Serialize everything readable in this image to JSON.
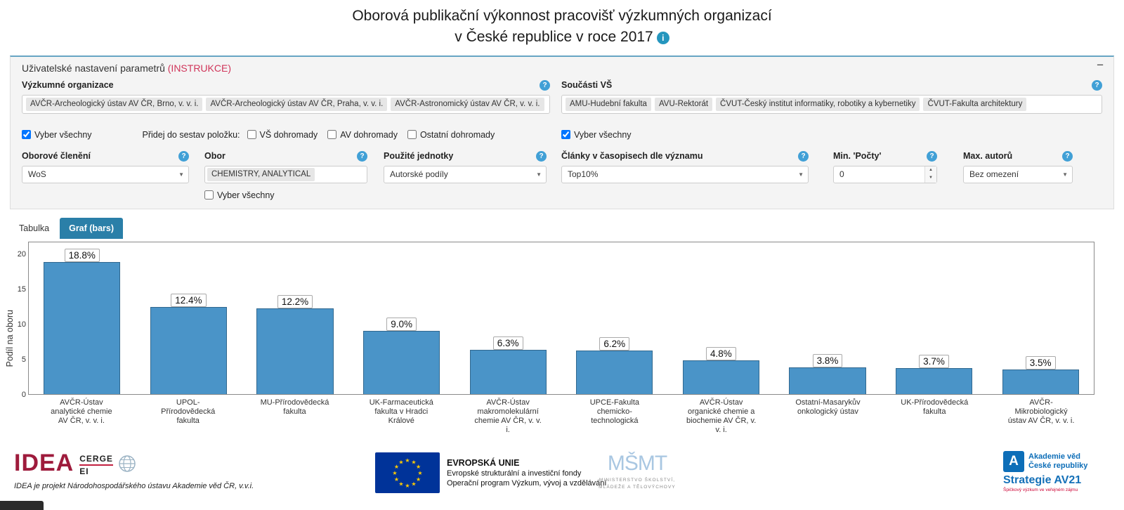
{
  "title": {
    "line1": "Oborová publikační výkonnost pracovišť výzkumných organizací",
    "line2": "v České republice v roce 2017",
    "info_icon": "i"
  },
  "panel": {
    "header": "Uživatelské nastavení parametrů ",
    "instructions": "(INSTRUKCE)",
    "collapse_icon": "−",
    "help_icon": "?",
    "vyzkumne_organizace": {
      "label": "Výzkumné organizace",
      "tags": [
        "AVČR-Archeologický ústav AV ČR, Brno, v. v. i.",
        "AVČR-Archeologický ústav AV ČR, Praha, v. v. i.",
        "AVČR-Astronomický ústav AV ČR, v. v. i."
      ],
      "select_all": "Vyber všechny"
    },
    "soucasti_vs": {
      "label": "Součásti VŠ",
      "tags": [
        "AMU-Hudební fakulta",
        "AVU-Rektorát",
        "ČVUT-Český institut informatiky, robotiky a kybernetiky",
        "ČVUT-Fakulta architektury"
      ],
      "select_all": "Vyber všechny"
    },
    "pridej": {
      "label": "Přidej do sestav položku:",
      "options": [
        "VŠ dohromady",
        "AV dohromady",
        "Ostatní dohromady"
      ]
    },
    "oborove_cleneni": {
      "label": "Oborové členění",
      "value": "WoS"
    },
    "obor": {
      "label": "Obor",
      "value": "CHEMISTRY, ANALYTICAL",
      "select_all": "Vyber všechny"
    },
    "pouzite_jednotky": {
      "label": "Použité jednotky",
      "value": "Autorské podíly"
    },
    "clanky": {
      "label": "Články v časopisech dle významu",
      "value": "Top10%"
    },
    "min_pocty": {
      "label": "Min. 'Počty'",
      "value": "0"
    },
    "max_autoru": {
      "label": "Max. autorů",
      "value": "Bez omezení"
    }
  },
  "tabs": {
    "tabulka": "Tabulka",
    "graf": "Graf (bars)"
  },
  "chart_data": {
    "type": "bar",
    "title": "",
    "ylabel": "Podíl na oboru",
    "xlabel": "",
    "ylim": [
      0,
      20
    ],
    "yticks": [
      0,
      5,
      10,
      15,
      20
    ],
    "grid": false,
    "legend": "none",
    "bar_color": "#4a94c8",
    "bar_border_color": "#31688f",
    "categories": [
      "AVČR-Ústav analytické chemie AV ČR, v. v. i.",
      "UPOL-Přírodovědecká fakulta",
      "MU-Přírodovědecká fakulta",
      "UK-Farmaceutická fakulta v Hradci Králové",
      "AVČR-Ústav makromolekulární chemie AV ČR, v. v. i.",
      "UPCE-Fakulta chemicko-technologická",
      "AVČR-Ústav organické chemie a biochemie AV ČR, v. v. i.",
      "Ostatní-Masarykův onkologický ústav",
      "UK-Přírodovědecká fakulta",
      "AVČR-Mikrobiologický ústav AV ČR, v. v. i."
    ],
    "values": [
      18.8,
      12.4,
      12.2,
      9.0,
      6.3,
      6.2,
      4.8,
      3.8,
      3.7,
      3.5
    ],
    "labels": [
      "18.8%",
      "12.4%",
      "12.2%",
      "9.0%",
      "6.3%",
      "6.2%",
      "4.8%",
      "3.8%",
      "3.7%",
      "3.5%"
    ]
  },
  "footer": {
    "idea": {
      "name": "IDEA",
      "cerge": "CERGE",
      "ei": "EI",
      "caption": "IDEA je projekt Národohospodářského ústavu Akademie věd ČR, v.v.i."
    },
    "eu": {
      "line1": "EVROPSKÁ UNIE",
      "line2": "Evropské strukturální a investiční fondy",
      "line3": "Operační program Výzkum, vývoj a vzdělávání"
    },
    "msmt": {
      "mark": "MŠMT",
      "line1": "MINISTERSTVO ŠKOLSTVÍ,",
      "line2": "MLÁDEŽE A TĚLOVÝCHOVY"
    },
    "av21": {
      "mark": "A",
      "line1": "Akademie věd",
      "line2": "České republiky",
      "strategie": "Strategie AV21",
      "tagline": "Špičkový výzkum ve veřejném zájmu"
    }
  },
  "colors": {
    "bar": "#4a94c8",
    "bar_border": "#31688f",
    "tab_active": "#2a7fa8",
    "accent_red": "#d0355a",
    "idea_red": "#9e1b3c",
    "help_blue": "#41a0d6",
    "info_teal": "#2596be",
    "eu_blue": "#003399",
    "eu_star": "#ffcc00",
    "av_blue": "#0d6eb8"
  }
}
